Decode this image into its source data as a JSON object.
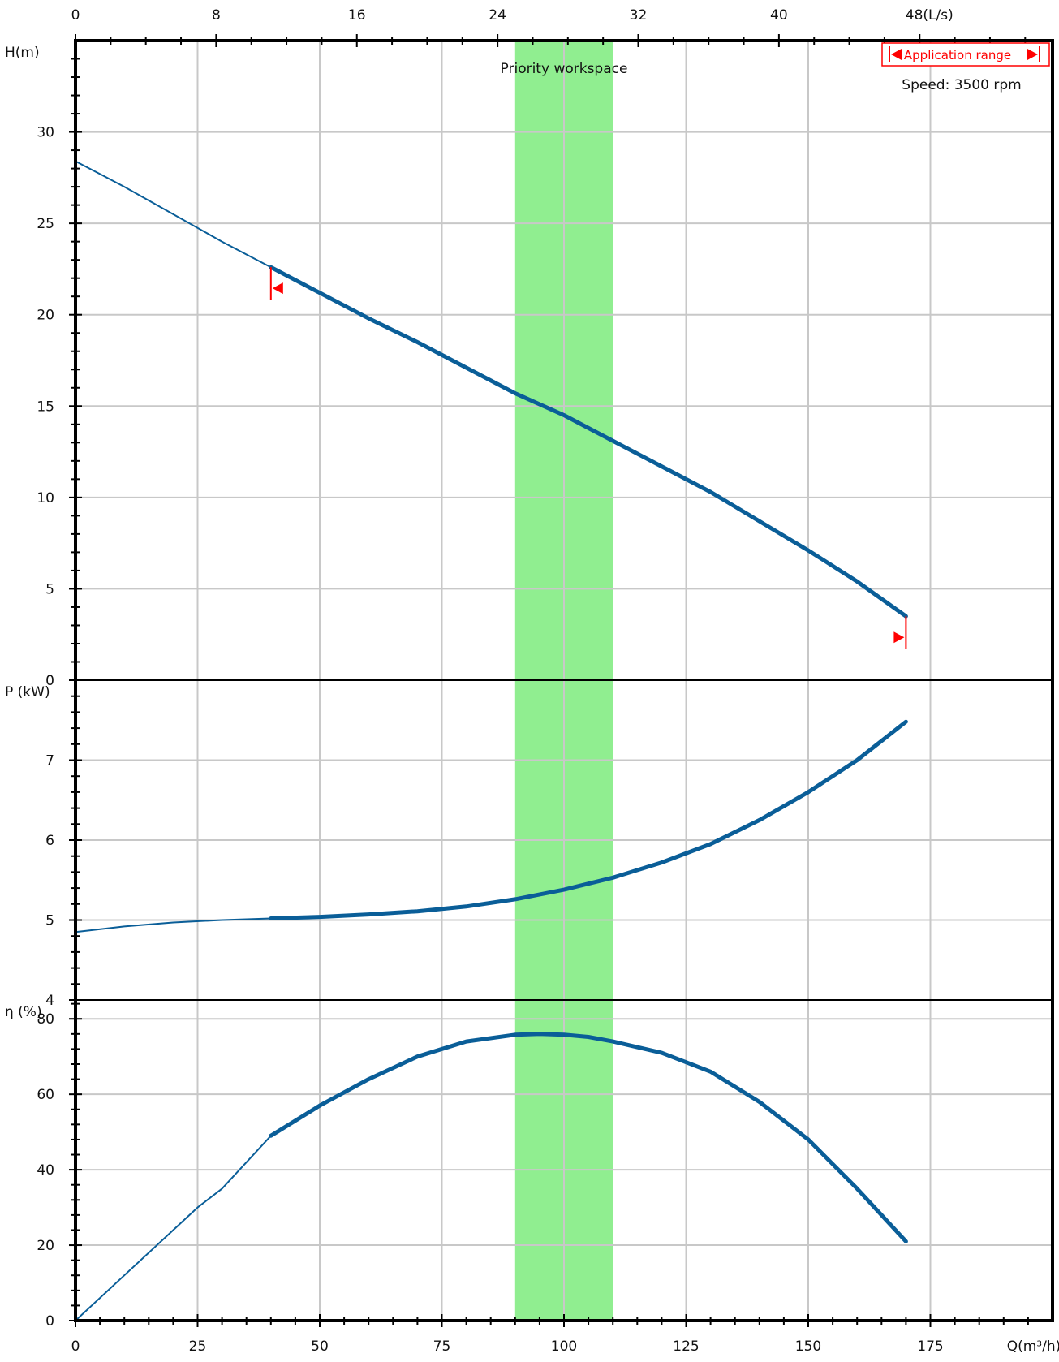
{
  "chart_data": {
    "type": "line",
    "x_axis": {
      "label": "Q(m³/h)",
      "range": [
        0,
        200
      ],
      "ticks": [
        0,
        25,
        50,
        75,
        100,
        125,
        150,
        175
      ]
    },
    "x_axis_top": {
      "label": "(L/s)",
      "ticks": [
        "0",
        "8",
        "16",
        "24",
        "32",
        "40",
        "48(L/s)"
      ],
      "tick_values": [
        0,
        8,
        16,
        24,
        32,
        40,
        48
      ]
    },
    "priority_band": {
      "label": "Priority workspace",
      "x_range": [
        90,
        110
      ],
      "color": "#90EE90"
    },
    "application_range": {
      "label": "Application range",
      "x_range": [
        40,
        170
      ],
      "color": "#ff0000"
    },
    "speed_label": "Speed: 3500 rpm",
    "curve_color": "#0a5e98",
    "panels": [
      {
        "id": "head",
        "ylabel": "H(m)",
        "ylim": [
          0,
          35
        ],
        "yticks": [
          0,
          5,
          10,
          15,
          20,
          25,
          30
        ],
        "series": {
          "x": [
            0,
            10,
            20,
            30,
            40,
            50,
            60,
            70,
            80,
            90,
            100,
            110,
            120,
            130,
            140,
            150,
            160,
            170
          ],
          "y": [
            28.4,
            27.0,
            25.5,
            24.0,
            22.6,
            21.2,
            19.8,
            18.5,
            17.1,
            15.7,
            14.5,
            13.1,
            11.7,
            10.3,
            8.7,
            7.1,
            5.4,
            3.5
          ]
        }
      },
      {
        "id": "power",
        "ylabel": "P (kW)",
        "ylim": [
          4,
          8
        ],
        "yticks": [
          4,
          5,
          6,
          7
        ],
        "series": {
          "x": [
            0,
            10,
            20,
            30,
            40,
            50,
            60,
            70,
            80,
            90,
            100,
            110,
            120,
            130,
            140,
            150,
            160,
            170
          ],
          "y": [
            4.85,
            4.92,
            4.97,
            5.0,
            5.02,
            5.04,
            5.07,
            5.11,
            5.17,
            5.26,
            5.38,
            5.53,
            5.72,
            5.95,
            6.25,
            6.6,
            7.0,
            7.48
          ]
        }
      },
      {
        "id": "efficiency",
        "ylabel": "η (%)",
        "ylim": [
          0,
          85
        ],
        "yticks": [
          0,
          20,
          40,
          60,
          80
        ],
        "series": {
          "x": [
            0,
            10,
            20,
            25,
            30,
            40,
            50,
            60,
            70,
            80,
            90,
            95,
            100,
            105,
            110,
            120,
            130,
            140,
            150,
            160,
            170
          ],
          "y": [
            0,
            12,
            24,
            30,
            35,
            49,
            57,
            64,
            70,
            74,
            75.8,
            76,
            75.8,
            75.2,
            74,
            71,
            66,
            58,
            48,
            35,
            21
          ]
        }
      }
    ]
  }
}
